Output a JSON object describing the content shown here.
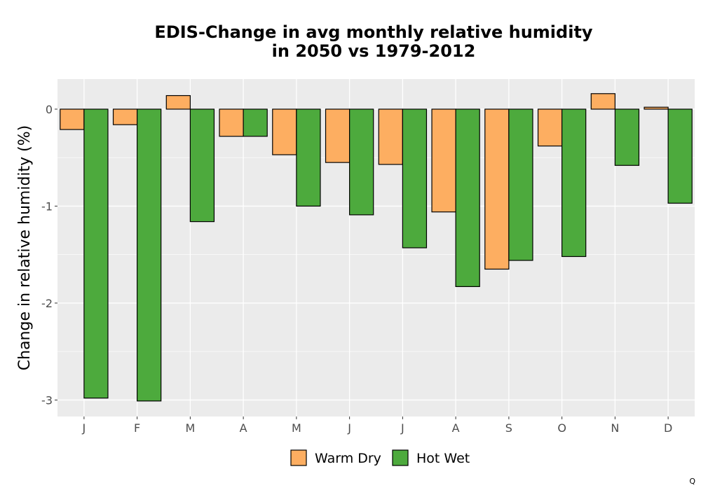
{
  "chart_data": {
    "type": "bar",
    "title": [
      "EDIS-Change in avg monthly relative humidity",
      "in 2050 vs 1979-2012"
    ],
    "xlabel": "",
    "ylabel": "Change in relative humidity (%)",
    "categories": [
      "J",
      "F",
      "M",
      "A",
      "M",
      "J",
      "J",
      "A",
      "S",
      "O",
      "N",
      "D"
    ],
    "series": [
      {
        "name": "Warm Dry",
        "color": "#fdae61",
        "values": [
          -0.21,
          -0.16,
          0.14,
          -0.28,
          -0.47,
          -0.55,
          -0.57,
          -1.06,
          -1.65,
          -0.38,
          0.16,
          0.02
        ]
      },
      {
        "name": "Hot Wet",
        "color": "#4daa3d",
        "values": [
          -2.98,
          -3.01,
          -1.16,
          -0.28,
          -1.0,
          -1.09,
          -1.43,
          -1.83,
          -1.56,
          -1.52,
          -0.58,
          -0.97
        ]
      }
    ],
    "ylim": [
      -3.17,
      0.31
    ],
    "yticks": [
      0,
      -1,
      -2,
      -3
    ],
    "ytick_labels": [
      "0",
      "-1",
      "-2",
      "-3"
    ],
    "grid": true,
    "legend_position": "bottom",
    "panel_color": "#ebebeb"
  },
  "corner_mark": "Q"
}
